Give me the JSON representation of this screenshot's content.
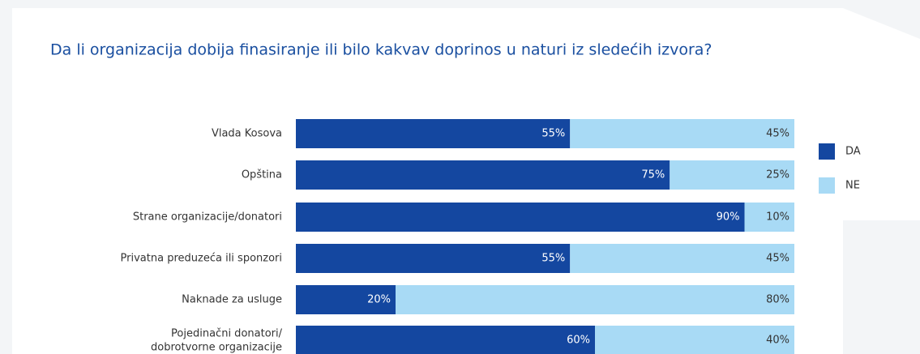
{
  "chart_data": {
    "type": "stacked-bar-horizontal",
    "title": "Da li organizacija dobija finasiranje ili bilo kakvav doprinos u naturi iz sledećih izvora?",
    "categories": [
      "Vlada Kosova",
      "Opština",
      "Strane organizacije/donatori",
      "Privatna preduzeća ili sponzori",
      "Naknade za usluge",
      "Pojedinačni donatori/\ndobrotvorne organizacije"
    ],
    "xlim": [
      0,
      100
    ],
    "series": [
      {
        "name": "DA",
        "color": "#1447a0",
        "values": [
          55,
          75,
          90,
          55,
          20,
          60
        ],
        "value_labels": [
          "55%",
          "75%",
          "90%",
          "55%",
          "20%",
          "60%"
        ]
      },
      {
        "name": "NE",
        "color": "#a8daf5",
        "values": [
          45,
          25,
          10,
          45,
          80,
          40
        ],
        "value_labels": [
          "45%",
          "25%",
          "10%",
          "45%",
          "80%",
          "40%"
        ]
      }
    ]
  }
}
